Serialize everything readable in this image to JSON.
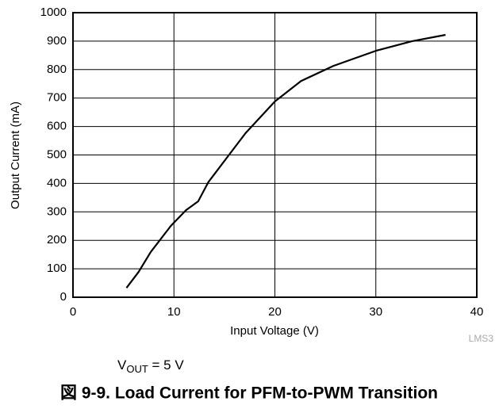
{
  "chart_data": {
    "type": "line",
    "xlabel": "Input Voltage (V)",
    "ylabel": "Output Current (mA)",
    "annotation": [
      "V",
      "OUT",
      " = 5 V"
    ],
    "watermark": "LMS3",
    "caption": "図 9-9. Load Current for PFM-to-PWM Transition",
    "xlim": [
      0,
      40
    ],
    "xticks": [
      0,
      10,
      20,
      30,
      40
    ],
    "ylim": [
      0,
      1000
    ],
    "yticks": [
      0,
      100,
      200,
      300,
      400,
      500,
      600,
      700,
      800,
      900,
      1000
    ],
    "grid": true,
    "series": [
      {
        "color": "#000000",
        "x": [
          5.3,
          6.5,
          7.7,
          9.7,
          11.2,
          12.4,
          13.4,
          15.6,
          17.1,
          20,
          22.6,
          25.8,
          30,
          33.6,
          36.9
        ],
        "values": [
          33,
          89,
          159,
          251,
          306,
          337,
          404,
          507,
          577,
          688,
          760,
          813,
          866,
          900,
          922
        ]
      }
    ]
  }
}
